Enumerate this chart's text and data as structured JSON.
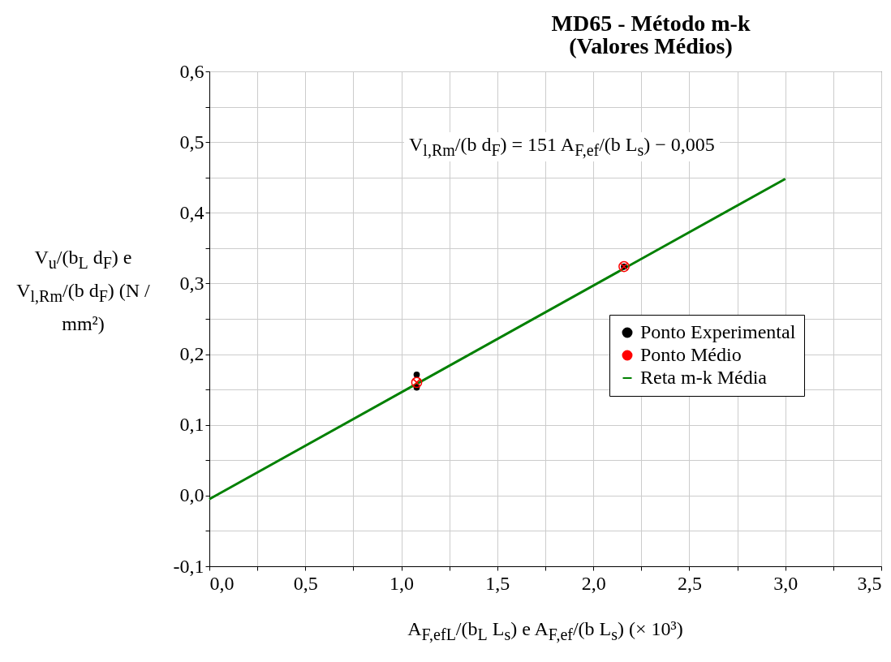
{
  "chart_data": {
    "type": "scatter",
    "title": "MD65 - Método m-k",
    "subtitle": "(Valores Médios)",
    "xlabel": "A$_{F,ef}$$_{L}$/(b$_{L}$ L$_{s}$) e A$_{F,ef}$/(b L$_{s}$) (× 10³)",
    "ylabel": "V$_{u}$/(b$_{L}$ d$_{F}$) e V$_{l,Rm}$/(b d$_{F}$) (N / mm²)",
    "annotations": [
      "V$_{l,Rm}$/(b d$_{F}$) = 151 A$_{F,ef}$/(b L$_{s}$) − 0,005"
    ],
    "series": [
      {
        "name": "Ponto Experimental",
        "color": "#000000",
        "marker": "circle",
        "x": [
          1.08,
          1.08,
          2.16
        ],
        "values": [
          0.171,
          0.153,
          0.324
        ]
      },
      {
        "name": "Ponto Médio",
        "color": "#ff0000",
        "marker": "cross",
        "x": [
          1.08,
          2.16
        ],
        "values": [
          0.16,
          0.324
        ]
      },
      {
        "name": "Reta m-k Média",
        "type": "line",
        "color": "#008000",
        "marker": "none",
        "x": [
          0,
          3.0
        ],
        "values": [
          -0.005,
          0.448
        ]
      }
    ],
    "xlim": [
      0,
      3.5
    ],
    "ylim": [
      -0.1,
      0.6
    ],
    "xticks": [
      {
        "value": 0,
        "label": "0,0"
      },
      {
        "value": 0.25,
        "label": null
      },
      {
        "value": 0.5,
        "label": "0,5"
      },
      {
        "value": 0.75,
        "label": null
      },
      {
        "value": 1,
        "label": "1,0"
      },
      {
        "value": 1.25,
        "label": null
      },
      {
        "value": 1.5,
        "label": "1,5"
      },
      {
        "value": 1.75,
        "label": null
      },
      {
        "value": 2,
        "label": "2,0"
      },
      {
        "value": 2.25,
        "label": null
      },
      {
        "value": 2.5,
        "label": "2,5"
      },
      {
        "value": 2.75,
        "label": null
      },
      {
        "value": 3,
        "label": "3,0"
      },
      {
        "value": 3.25,
        "label": null
      },
      {
        "value": 3.5,
        "label": "3,5"
      }
    ],
    "yticks": [
      {
        "value": -0.1,
        "label": "-0,1"
      },
      {
        "value": -0.05,
        "label": null
      },
      {
        "value": 0,
        "label": "0,0"
      },
      {
        "value": 0.05,
        "label": null
      },
      {
        "value": 0.1,
        "label": "0,1"
      },
      {
        "value": 0.15,
        "label": null
      },
      {
        "value": 0.2,
        "label": "0,2"
      },
      {
        "value": 0.25,
        "label": null
      },
      {
        "value": 0.3,
        "label": "0,3"
      },
      {
        "value": 0.35,
        "label": null
      },
      {
        "value": 0.4,
        "label": "0,4"
      },
      {
        "value": 0.45,
        "label": null
      },
      {
        "value": 0.5,
        "label": "0,5"
      },
      {
        "value": 0.55,
        "label": null
      },
      {
        "value": 0.6,
        "label": "0,6"
      }
    ],
    "grid": true,
    "legend": "right"
  }
}
